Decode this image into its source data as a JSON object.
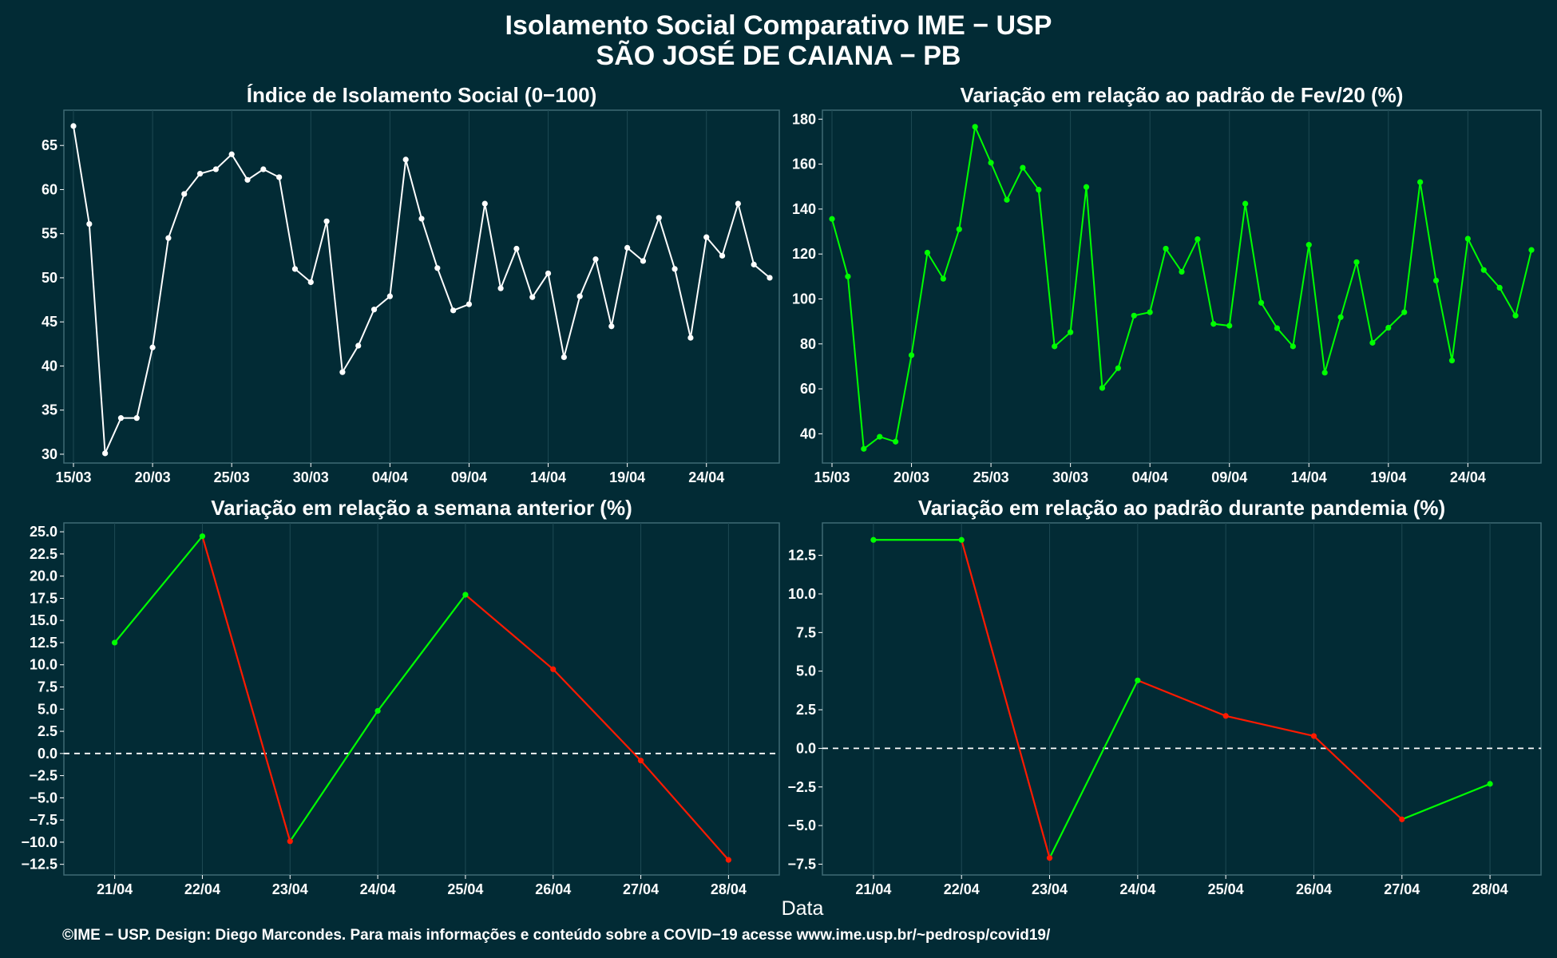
{
  "header": {
    "title_line1": "Isolamento Social Comparativo IME − USP",
    "title_line2": "SÃO JOSÉ DE CAIANA − PB"
  },
  "x_axis_label": "Data",
  "caption": "©IME − USP. Design: Diego Marcondes. Para mais informações e conteúdo sobre a COVID−19 acesse www.ime.usp.br/~pedrosp/covid19/",
  "colors": {
    "background": "#022b35",
    "panel_border": "#3e6a74",
    "white_series": "#ffffff",
    "green_series": "#00ff00",
    "red_series": "#ff1a00"
  },
  "chart_data": [
    {
      "type": "line",
      "title": "Índice de Isolamento Social (0−100)",
      "x_tick_labels": [
        "15/03",
        "20/03",
        "25/03",
        "30/03",
        "04/04",
        "09/04",
        "14/04",
        "19/04",
        "24/04"
      ],
      "y_tick_labels": [
        "30",
        "35",
        "40",
        "45",
        "50",
        "55",
        "60",
        "65"
      ],
      "ylim": [
        29,
        69
      ],
      "x_start_label": "15/03",
      "values": [
        67.2,
        56.1,
        30.1,
        34.1,
        34.1,
        42.1,
        54.5,
        59.5,
        61.8,
        62.3,
        64.0,
        61.1,
        62.3,
        61.4,
        51.0,
        49.5,
        56.4,
        39.3,
        42.3,
        46.4,
        47.9,
        63.4,
        56.7,
        51.1,
        46.3,
        47.0,
        58.4,
        48.8,
        53.3,
        47.8,
        50.5,
        41.0,
        47.9,
        52.1,
        44.5,
        53.4,
        51.9,
        56.8,
        51.0,
        43.2,
        54.6,
        52.5,
        58.4,
        51.5,
        50.0
      ],
      "color": "#ffffff",
      "grid": true
    },
    {
      "type": "line",
      "title": "Variação em relação ao padrão de Fev/20 (%)",
      "x_tick_labels": [
        "15/03",
        "20/03",
        "25/03",
        "30/03",
        "04/04",
        "09/04",
        "14/04",
        "19/04",
        "24/04"
      ],
      "y_tick_labels": [
        "40",
        "60",
        "80",
        "100",
        "120",
        "140",
        "160",
        "180"
      ],
      "ylim": [
        27,
        184
      ],
      "x_start_label": "15/03",
      "values": [
        135.6,
        110.0,
        33.3,
        38.7,
        36.5,
        75.0,
        120.6,
        109.0,
        131.0,
        176.6,
        160.6,
        144.1,
        158.4,
        148.6,
        78.9,
        85.2,
        149.8,
        60.4,
        69.2,
        92.6,
        94.1,
        122.4,
        112.1,
        126.6,
        88.9,
        88.1,
        142.4,
        98.3,
        87.0,
        78.9,
        124.1,
        67.2,
        91.9,
        116.4,
        80.5,
        87.2,
        94.1,
        152.0,
        108.2,
        72.6,
        126.8,
        112.9,
        105.0,
        92.6,
        121.8
      ],
      "color": "#00ff00",
      "grid": true
    },
    {
      "type": "line",
      "title": "Variação em relação a semana anterior (%)",
      "categories": [
        "21/04",
        "22/04",
        "23/04",
        "24/04",
        "25/04",
        "26/04",
        "27/04",
        "28/04"
      ],
      "y_tick_labels": [
        "−12.5",
        "−10.0",
        "−7.5",
        "−5.0",
        "−2.5",
        "0.0",
        "2.5",
        "5.0",
        "7.5",
        "10.0",
        "12.5",
        "15.0",
        "17.5",
        "20.0",
        "22.5",
        "25.0"
      ],
      "ylim": [
        -13.7,
        26.0
      ],
      "values": [
        12.5,
        24.5,
        -9.9,
        4.8,
        17.9,
        9.5,
        -0.8,
        -12.0
      ],
      "rising_color": "#00ff00",
      "falling_color": "#ff1a00",
      "zero_line": "dashed",
      "grid": true
    },
    {
      "type": "line",
      "title": "Variação em relação ao padrão durante pandemia (%)",
      "categories": [
        "21/04",
        "22/04",
        "23/04",
        "24/04",
        "25/04",
        "26/04",
        "27/04",
        "28/04"
      ],
      "y_tick_labels": [
        "−7.5",
        "−5.0",
        "−2.5",
        "0.0",
        "2.5",
        "5.0",
        "7.5",
        "10.0",
        "12.5"
      ],
      "ylim": [
        -8.2,
        14.6
      ],
      "values": [
        13.5,
        13.5,
        -7.1,
        4.4,
        2.1,
        0.8,
        -4.6,
        -2.3
      ],
      "rising_color": "#00ff00",
      "falling_color": "#ff1a00",
      "zero_line": "dashed",
      "grid": true
    }
  ]
}
